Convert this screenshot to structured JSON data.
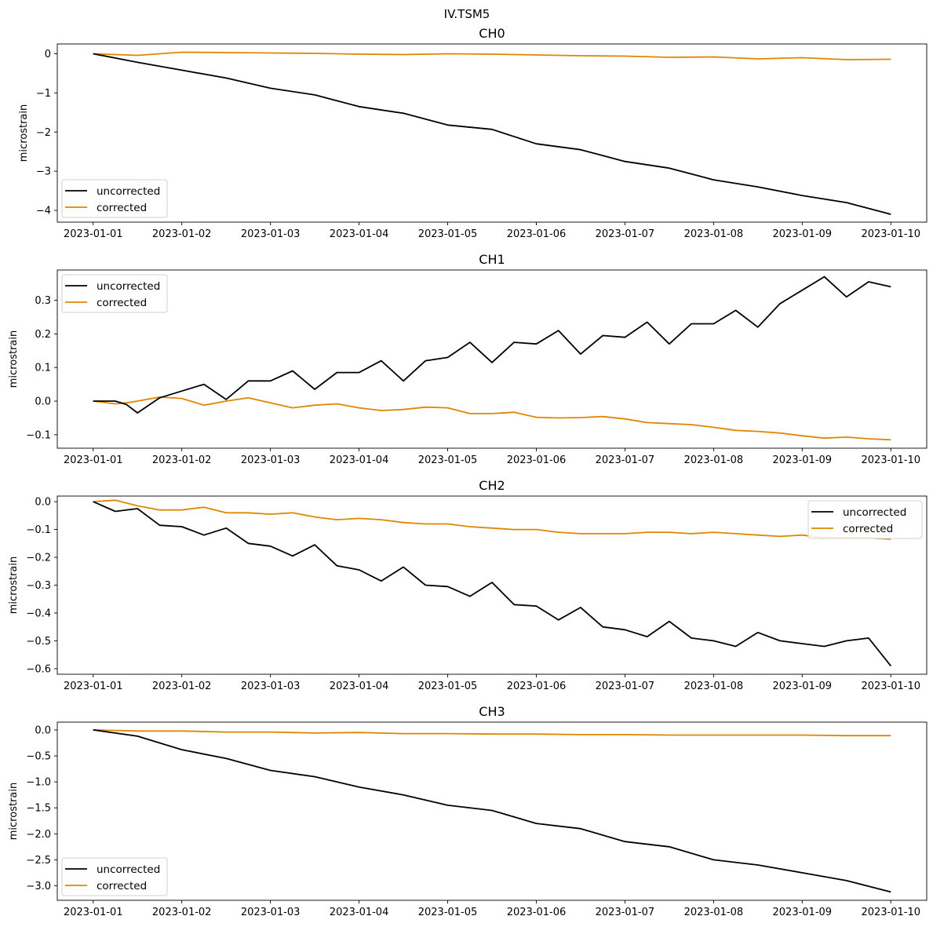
{
  "figure_title": "IV.TSM5",
  "colors": {
    "uncorrected": "#000000",
    "corrected": "#e08600"
  },
  "chart_data": [
    {
      "type": "line",
      "title": "CH0",
      "ylabel": "microstrain",
      "x": [
        "2023-01-01",
        "2023-01-01 12:00",
        "2023-01-02",
        "2023-01-02 12:00",
        "2023-01-03",
        "2023-01-03 12:00",
        "2023-01-04",
        "2023-01-04 12:00",
        "2023-01-05",
        "2023-01-05 12:00",
        "2023-01-06",
        "2023-01-06 12:00",
        "2023-01-07",
        "2023-01-07 12:00",
        "2023-01-08",
        "2023-01-08 12:00",
        "2023-01-09",
        "2023-01-09 12:00",
        "2023-01-10"
      ],
      "series": [
        {
          "name": "uncorrected",
          "values": [
            0.0,
            -0.22,
            -0.42,
            -0.62,
            -0.88,
            -1.05,
            -1.35,
            -1.52,
            -1.82,
            -1.93,
            -2.3,
            -2.45,
            -2.75,
            -2.92,
            -3.22,
            -3.4,
            -3.62,
            -3.8,
            -4.1
          ]
        },
        {
          "name": "corrected",
          "values": [
            0.0,
            -0.04,
            0.04,
            0.03,
            0.02,
            0.01,
            -0.01,
            -0.02,
            0.0,
            -0.01,
            -0.03,
            -0.05,
            -0.06,
            -0.09,
            -0.08,
            -0.13,
            -0.1,
            -0.15,
            -0.14
          ]
        }
      ],
      "xticks": [
        "2023-01-01",
        "2023-01-02",
        "2023-01-03",
        "2023-01-04",
        "2023-01-05",
        "2023-01-06",
        "2023-01-07",
        "2023-01-08",
        "2023-01-09",
        "2023-01-10"
      ],
      "yticks": [
        0,
        -1,
        -2,
        -3,
        -4
      ],
      "ytick_labels": [
        "0",
        "−1",
        "−2",
        "−3",
        "−4"
      ],
      "ylim": [
        -4.3,
        0.25
      ],
      "legend": "lower-left",
      "grid": false
    },
    {
      "type": "line",
      "title": "CH1",
      "ylabel": "microstrain",
      "x": [
        "2023-01-01",
        "2023-01-01 06:00",
        "2023-01-01 09:00",
        "2023-01-01 12:00",
        "2023-01-01 18:00",
        "2023-01-02",
        "2023-01-02 06:00",
        "2023-01-02 12:00",
        "2023-01-02 18:00",
        "2023-01-03",
        "2023-01-03 06:00",
        "2023-01-03 12:00",
        "2023-01-03 18:00",
        "2023-01-04",
        "2023-01-04 06:00",
        "2023-01-04 12:00",
        "2023-01-04 18:00",
        "2023-01-05",
        "2023-01-05 06:00",
        "2023-01-05 12:00",
        "2023-01-05 18:00",
        "2023-01-06",
        "2023-01-06 06:00",
        "2023-01-06 12:00",
        "2023-01-06 18:00",
        "2023-01-07",
        "2023-01-07 06:00",
        "2023-01-07 12:00",
        "2023-01-07 18:00",
        "2023-01-08",
        "2023-01-08 06:00",
        "2023-01-08 12:00",
        "2023-01-08 18:00",
        "2023-01-09",
        "2023-01-09 06:00",
        "2023-01-09 12:00",
        "2023-01-09 18:00",
        "2023-01-10"
      ],
      "series": [
        {
          "name": "uncorrected",
          "values": [
            0.0,
            0.0,
            -0.01,
            -0.035,
            0.01,
            0.03,
            0.05,
            0.005,
            0.06,
            0.06,
            0.09,
            0.035,
            0.085,
            0.085,
            0.12,
            0.06,
            0.12,
            0.13,
            0.175,
            0.115,
            0.175,
            0.17,
            0.21,
            0.14,
            0.195,
            0.19,
            0.235,
            0.17,
            0.23,
            0.23,
            0.27,
            0.22,
            0.29,
            0.33,
            0.37,
            0.31,
            0.355,
            0.34
          ]
        },
        {
          "name": "corrected",
          "values": [
            0.0,
            -0.008,
            -0.005,
            0.0,
            0.012,
            0.008,
            -0.012,
            0.0,
            0.01,
            -0.005,
            -0.02,
            -0.012,
            -0.008,
            -0.02,
            -0.028,
            -0.025,
            -0.018,
            -0.02,
            -0.037,
            -0.037,
            -0.033,
            -0.048,
            -0.05,
            -0.049,
            -0.046,
            -0.053,
            -0.064,
            -0.067,
            -0.07,
            -0.078,
            -0.087,
            -0.09,
            -0.095,
            -0.103,
            -0.11,
            -0.107,
            -0.112,
            -0.115
          ]
        }
      ],
      "xticks": [
        "2023-01-01",
        "2023-01-02",
        "2023-01-03",
        "2023-01-04",
        "2023-01-05",
        "2023-01-06",
        "2023-01-07",
        "2023-01-08",
        "2023-01-09",
        "2023-01-10"
      ],
      "yticks": [
        0.3,
        0.2,
        0.1,
        0.0,
        -0.1
      ],
      "ytick_labels": [
        "0.3",
        "0.2",
        "0.1",
        "0.0",
        "−0.1"
      ],
      "ylim": [
        -0.14,
        0.39
      ],
      "legend": "upper-left",
      "grid": false
    },
    {
      "type": "line",
      "title": "CH2",
      "ylabel": "microstrain",
      "x": [
        "2023-01-01",
        "2023-01-01 06:00",
        "2023-01-01 12:00",
        "2023-01-01 18:00",
        "2023-01-02",
        "2023-01-02 06:00",
        "2023-01-02 12:00",
        "2023-01-02 18:00",
        "2023-01-03",
        "2023-01-03 06:00",
        "2023-01-03 12:00",
        "2023-01-03 18:00",
        "2023-01-04",
        "2023-01-04 06:00",
        "2023-01-04 12:00",
        "2023-01-04 18:00",
        "2023-01-05",
        "2023-01-05 06:00",
        "2023-01-05 12:00",
        "2023-01-05 18:00",
        "2023-01-06",
        "2023-01-06 06:00",
        "2023-01-06 12:00",
        "2023-01-06 18:00",
        "2023-01-07",
        "2023-01-07 06:00",
        "2023-01-07 12:00",
        "2023-01-07 18:00",
        "2023-01-08",
        "2023-01-08 06:00",
        "2023-01-08 12:00",
        "2023-01-08 18:00",
        "2023-01-09",
        "2023-01-09 06:00",
        "2023-01-09 12:00",
        "2023-01-09 18:00",
        "2023-01-10"
      ],
      "series": [
        {
          "name": "uncorrected",
          "values": [
            0.0,
            -0.035,
            -0.025,
            -0.085,
            -0.09,
            -0.12,
            -0.095,
            -0.15,
            -0.16,
            -0.195,
            -0.155,
            -0.23,
            -0.245,
            -0.285,
            -0.235,
            -0.3,
            -0.305,
            -0.34,
            -0.29,
            -0.37,
            -0.375,
            -0.425,
            -0.38,
            -0.45,
            -0.46,
            -0.485,
            -0.43,
            -0.49,
            -0.5,
            -0.52,
            -0.47,
            -0.5,
            -0.51,
            -0.52,
            -0.5,
            -0.49,
            -0.59
          ]
        },
        {
          "name": "corrected",
          "values": [
            0.0,
            0.005,
            -0.015,
            -0.03,
            -0.03,
            -0.02,
            -0.04,
            -0.04,
            -0.045,
            -0.04,
            -0.055,
            -0.065,
            -0.06,
            -0.065,
            -0.075,
            -0.08,
            -0.08,
            -0.09,
            -0.095,
            -0.1,
            -0.1,
            -0.11,
            -0.115,
            -0.115,
            -0.115,
            -0.11,
            -0.11,
            -0.115,
            -0.11,
            -0.115,
            -0.12,
            -0.125,
            -0.12,
            -0.13,
            -0.13,
            -0.13,
            -0.135
          ]
        }
      ],
      "xticks": [
        "2023-01-01",
        "2023-01-02",
        "2023-01-03",
        "2023-01-04",
        "2023-01-05",
        "2023-01-06",
        "2023-01-07",
        "2023-01-08",
        "2023-01-09",
        "2023-01-10"
      ],
      "yticks": [
        0.0,
        -0.1,
        -0.2,
        -0.3,
        -0.4,
        -0.5,
        -0.6
      ],
      "ytick_labels": [
        "0.0",
        "−0.1",
        "−0.2",
        "−0.3",
        "−0.4",
        "−0.5",
        "−0.6"
      ],
      "ylim": [
        -0.62,
        0.02
      ],
      "legend": "upper-right",
      "grid": false
    },
    {
      "type": "line",
      "title": "CH3",
      "ylabel": "microstrain",
      "x": [
        "2023-01-01",
        "2023-01-01 12:00",
        "2023-01-02",
        "2023-01-02 12:00",
        "2023-01-03",
        "2023-01-03 12:00",
        "2023-01-04",
        "2023-01-04 12:00",
        "2023-01-05",
        "2023-01-05 12:00",
        "2023-01-06",
        "2023-01-06 12:00",
        "2023-01-07",
        "2023-01-07 12:00",
        "2023-01-08",
        "2023-01-08 12:00",
        "2023-01-09",
        "2023-01-09 12:00",
        "2023-01-10"
      ],
      "series": [
        {
          "name": "uncorrected",
          "values": [
            0.0,
            -0.12,
            -0.38,
            -0.55,
            -0.78,
            -0.9,
            -1.1,
            -1.25,
            -1.45,
            -1.55,
            -1.8,
            -1.9,
            -2.15,
            -2.25,
            -2.5,
            -2.6,
            -2.75,
            -2.9,
            -3.12
          ]
        },
        {
          "name": "corrected",
          "values": [
            0.0,
            -0.02,
            -0.02,
            -0.04,
            -0.04,
            -0.06,
            -0.05,
            -0.07,
            -0.07,
            -0.08,
            -0.08,
            -0.09,
            -0.09,
            -0.1,
            -0.1,
            -0.1,
            -0.1,
            -0.11,
            -0.11
          ]
        }
      ],
      "xticks": [
        "2023-01-01",
        "2023-01-02",
        "2023-01-03",
        "2023-01-04",
        "2023-01-05",
        "2023-01-06",
        "2023-01-07",
        "2023-01-08",
        "2023-01-09",
        "2023-01-10"
      ],
      "yticks": [
        0.0,
        -0.5,
        -1.0,
        -1.5,
        -2.0,
        -2.5,
        -3.0
      ],
      "ytick_labels": [
        "0.0",
        "−0.5",
        "−1.0",
        "−1.5",
        "−2.0",
        "−2.5",
        "−3.0"
      ],
      "ylim": [
        -3.28,
        0.15
      ],
      "legend": "lower-left",
      "grid": false
    }
  ]
}
